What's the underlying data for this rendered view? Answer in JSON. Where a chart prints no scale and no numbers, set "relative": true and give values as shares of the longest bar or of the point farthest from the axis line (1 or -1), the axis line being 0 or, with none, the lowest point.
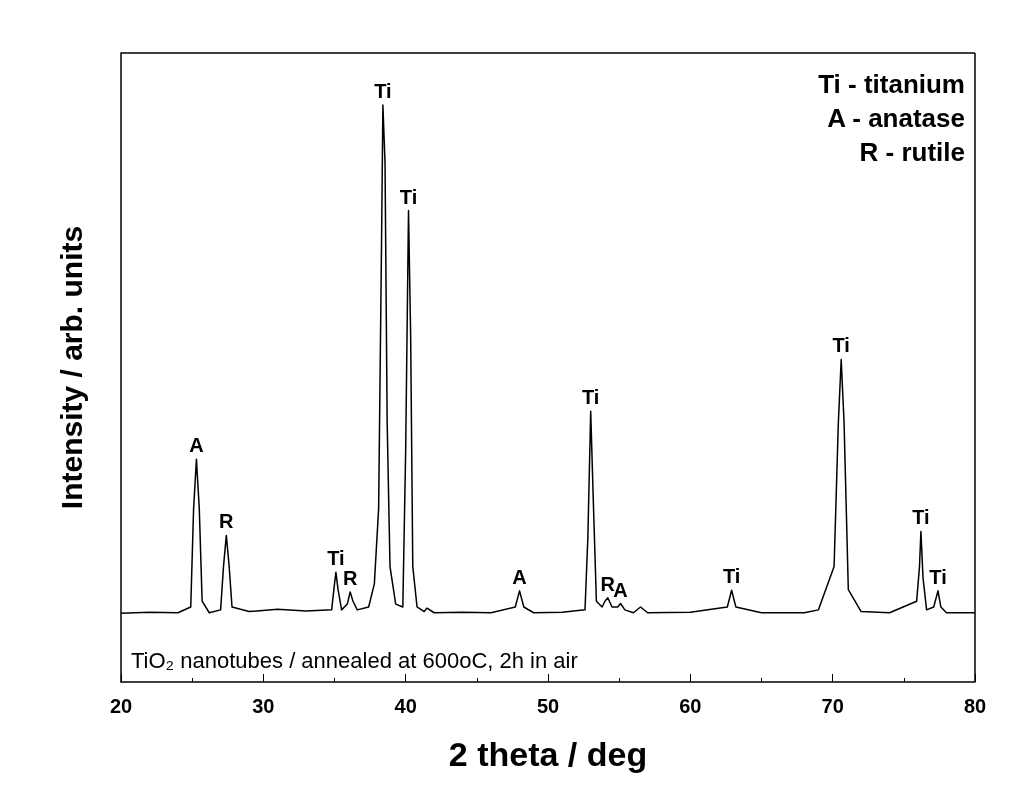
{
  "chart_data": {
    "type": "line",
    "xlabel": "2 theta / deg",
    "ylabel": "Intensity / arb. units",
    "relative": true,
    "tick_labels": "x",
    "grid": false,
    "marker": "none",
    "line_style": "solid",
    "xlim": [
      20,
      80
    ],
    "xticks": [
      20,
      30,
      40,
      50,
      60,
      70,
      80
    ],
    "series": [
      {
        "color": "#000000",
        "x": [
          20,
          22,
          24,
          24.9,
          25.1,
          25.3,
          25.5,
          25.7,
          26.2,
          27,
          27.2,
          27.4,
          27.6,
          27.8,
          29,
          31,
          33,
          34.8,
          35,
          35.1,
          35.25,
          35.5,
          35.9,
          36.1,
          36.3,
          36.6,
          37.4,
          37.8,
          38.1,
          38.3,
          38.4,
          38.55,
          38.7,
          38.9,
          39.3,
          39.8,
          40,
          40.2,
          40.35,
          40.5,
          40.8,
          41.3,
          41.5,
          42,
          44,
          46,
          47.7,
          48,
          48.3,
          49,
          51,
          52.6,
          52.8,
          53,
          53.2,
          53.4,
          53.8,
          54,
          54.2,
          54.5,
          54.9,
          55.1,
          55.4,
          56,
          56.5,
          57,
          60,
          62.6,
          62.9,
          63.2,
          65,
          68,
          69,
          70.1,
          70.4,
          70.6,
          70.8,
          71.1,
          72,
          74,
          75.9,
          76.1,
          76.2,
          76.35,
          76.6,
          77.1,
          77.4,
          77.6,
          78,
          80
        ],
        "values": [
          0.119,
          0.121,
          0.12,
          0.13,
          0.3,
          0.386,
          0.3,
          0.14,
          0.12,
          0.125,
          0.2,
          0.254,
          0.2,
          0.13,
          0.122,
          0.126,
          0.123,
          0.125,
          0.17,
          0.19,
          0.16,
          0.125,
          0.135,
          0.156,
          0.14,
          0.125,
          0.13,
          0.17,
          0.3,
          0.75,
          1,
          0.9,
          0.45,
          0.2,
          0.135,
          0.13,
          0.4,
          0.817,
          0.6,
          0.2,
          0.13,
          0.122,
          0.128,
          0.12,
          0.121,
          0.12,
          0.13,
          0.158,
          0.13,
          0.12,
          0.121,
          0.125,
          0.25,
          0.469,
          0.3,
          0.14,
          0.13,
          0.14,
          0.146,
          0.13,
          0.13,
          0.136,
          0.125,
          0.12,
          0.13,
          0.12,
          0.121,
          0.13,
          0.159,
          0.13,
          0.12,
          0.12,
          0.125,
          0.2,
          0.45,
          0.559,
          0.45,
          0.16,
          0.122,
          0.12,
          0.14,
          0.2,
          0.261,
          0.18,
          0.125,
          0.13,
          0.158,
          0.13,
          0.12,
          0.12
        ]
      }
    ],
    "annotations": [
      {
        "text": "A",
        "x": 25.3,
        "y": 0.386
      },
      {
        "text": "R",
        "x": 27.4,
        "y": 0.254
      },
      {
        "text": "Ti",
        "x": 35.1,
        "y": 0.19
      },
      {
        "text": "R",
        "x": 36.1,
        "y": 0.156
      },
      {
        "text": "Ti",
        "x": 38.4,
        "y": 1
      },
      {
        "text": "Ti",
        "x": 40.2,
        "y": 0.817
      },
      {
        "text": "A",
        "x": 48,
        "y": 0.158
      },
      {
        "text": "Ti",
        "x": 53,
        "y": 0.469
      },
      {
        "text": "R",
        "x": 54.2,
        "y": 0.146
      },
      {
        "text": "A",
        "x": 55.1,
        "y": 0.136
      },
      {
        "text": "Ti",
        "x": 62.9,
        "y": 0.159
      },
      {
        "text": "Ti",
        "x": 70.6,
        "y": 0.559
      },
      {
        "text": "Ti",
        "x": 76.2,
        "y": 0.261
      },
      {
        "text": "Ti",
        "x": 77.4,
        "y": 0.158
      },
      "Ti - titanium",
      "A - anatase",
      "R - rutile",
      "TiO₂ nanotubes / annealed at 600oC, 2h in air"
    ]
  }
}
